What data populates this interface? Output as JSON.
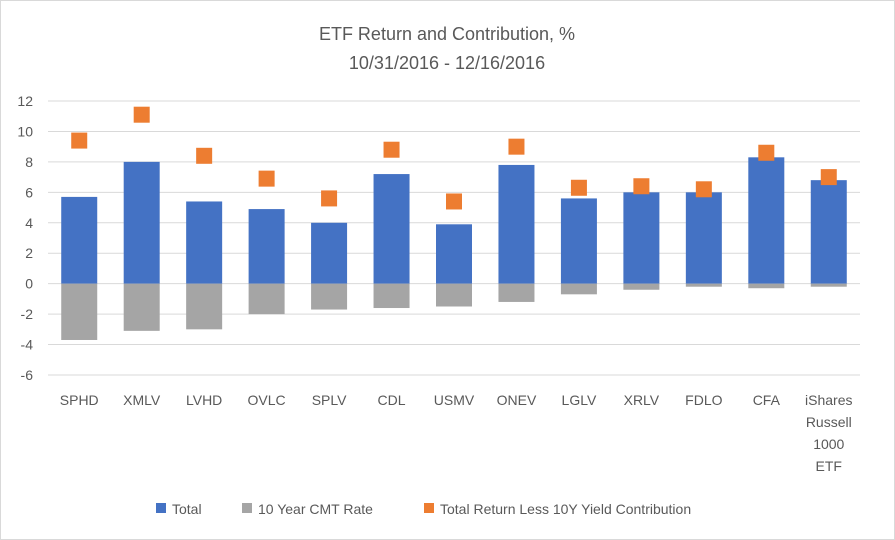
{
  "chart_data": {
    "type": "bar",
    "title": "ETF Return and Contribution, %",
    "subtitle": "10/31/2016 - 12/16/2016",
    "categories": [
      "SPHD",
      "XMLV",
      "LVHD",
      "OVLC",
      "SPLV",
      "CDL",
      "USMV",
      "ONEV",
      "LGLV",
      "XRLV",
      "FDLO",
      "CFA",
      "iShares Russell 1000 ETF"
    ],
    "series": [
      {
        "name": "Total",
        "type": "bar",
        "color": "#4472c4",
        "values": [
          5.7,
          8.0,
          5.4,
          4.9,
          4.0,
          7.2,
          3.9,
          7.8,
          5.6,
          6.0,
          6.0,
          8.3,
          6.8
        ]
      },
      {
        "name": "10 Year CMT Rate",
        "type": "bar",
        "color": "#a5a5a5",
        "values": [
          -3.7,
          -3.1,
          -3.0,
          -2.0,
          -1.7,
          -1.6,
          -1.5,
          -1.2,
          -0.7,
          -0.4,
          -0.2,
          -0.3,
          -0.2
        ]
      },
      {
        "name": "Total Return Less 10Y Yield Contribution",
        "type": "scatter",
        "color": "#ed7d31",
        "values": [
          9.4,
          11.1,
          8.4,
          6.9,
          5.6,
          8.8,
          5.4,
          9.0,
          6.3,
          6.4,
          6.2,
          8.6,
          7.0
        ]
      }
    ],
    "ylim": [
      -6,
      12
    ],
    "yticks": [
      -6,
      -4,
      -2,
      0,
      2,
      4,
      6,
      8,
      10,
      12
    ],
    "xlabel": "",
    "ylabel": "",
    "grid": true,
    "legend": "bottom"
  }
}
